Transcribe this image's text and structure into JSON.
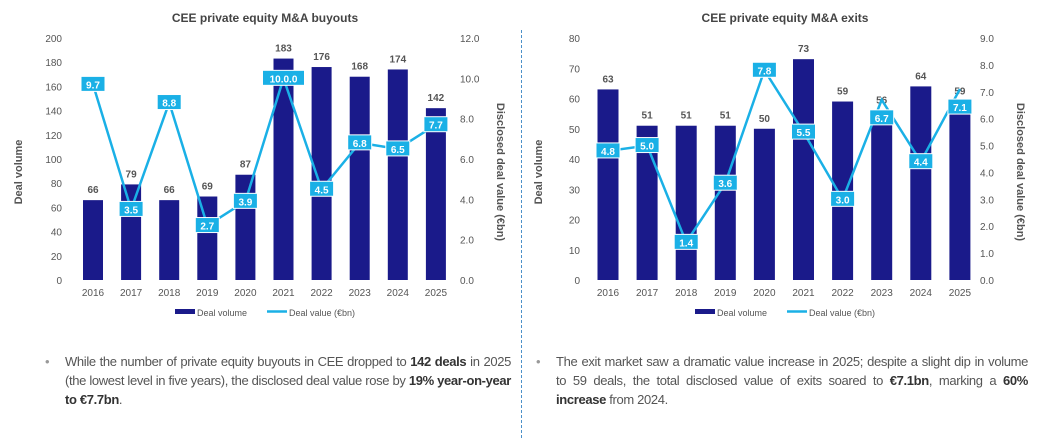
{
  "chart_data": [
    {
      "type": "bar+line",
      "title": "CEE private equity M&A buyouts",
      "categories": [
        "2016",
        "2017",
        "2018",
        "2019",
        "2020",
        "2021",
        "2022",
        "2023",
        "2024",
        "2025"
      ],
      "ylabel": "Deal volume",
      "y2label": "Disclosed deal value (€bn)",
      "ylim": [
        0,
        200
      ],
      "yticks": [
        "0",
        "20",
        "40",
        "60",
        "80",
        "100",
        "120",
        "140",
        "160",
        "180",
        "200"
      ],
      "y2lim": [
        0,
        12
      ],
      "y2ticks": [
        "0.0",
        "2.0",
        "4.0",
        "6.0",
        "8.0",
        "10.0",
        "12.0"
      ],
      "series": [
        {
          "name": "Deal volume",
          "type": "bar",
          "axis": "left",
          "values": [
            66,
            79,
            66,
            69,
            87,
            183,
            176,
            168,
            174,
            142
          ],
          "labels": [
            "66",
            "79",
            "66",
            "69",
            "87",
            "183",
            "176",
            "168",
            "174",
            "142"
          ]
        },
        {
          "name": "Deal value (€bn)",
          "type": "line",
          "axis": "right",
          "values": [
            9.7,
            3.5,
            8.8,
            2.7,
            3.9,
            10.0,
            4.5,
            6.8,
            6.5,
            7.7
          ],
          "labels": [
            "9.7",
            "3.5",
            "8.8",
            "2.7",
            "3.9",
            "10.0.0",
            "4.5",
            "6.8",
            "6.5",
            "7.7"
          ]
        }
      ],
      "legend": "bottom",
      "grid": false
    },
    {
      "type": "bar+line",
      "title": "CEE private equity M&A exits",
      "categories": [
        "2016",
        "2017",
        "2018",
        "2019",
        "2020",
        "2021",
        "2022",
        "2023",
        "2024",
        "2025"
      ],
      "ylabel": "Deal volume",
      "y2label": "Disclosed deal value (€bn)",
      "ylim": [
        0,
        80
      ],
      "yticks": [
        "0",
        "10",
        "20",
        "30",
        "40",
        "50",
        "60",
        "70",
        "80"
      ],
      "y2lim": [
        0,
        9
      ],
      "y2ticks": [
        "0.0",
        "1.0",
        "2.0",
        "3.0",
        "4.0",
        "5.0",
        "6.0",
        "7.0",
        "8.0",
        "9.0"
      ],
      "series": [
        {
          "name": "Deal volume",
          "type": "bar",
          "axis": "left",
          "values": [
            63,
            51,
            51,
            51,
            50,
            73,
            59,
            56,
            64,
            59
          ],
          "labels": [
            "63",
            "51",
            "51",
            "51",
            "50",
            "73",
            "59",
            "56",
            "64",
            "59"
          ]
        },
        {
          "name": "Deal value (€bn)",
          "type": "line",
          "axis": "right",
          "values": [
            4.8,
            5.0,
            1.4,
            3.6,
            7.8,
            5.5,
            3.0,
            6.7,
            4.4,
            7.1
          ],
          "labels": [
            "4.8",
            "5.0",
            "1.4",
            "3.6",
            "7.8",
            "5.5",
            "3.0",
            "6.7",
            "4.4",
            "7.1"
          ]
        }
      ],
      "legend": "bottom",
      "grid": false
    }
  ],
  "colors": {
    "bar": "#1a1a8a",
    "line": "#1ab0e6",
    "label_bg": "#1ab0e6",
    "text": "#555555"
  },
  "bullets": [
    [
      {
        "text": "While the number of private equity buyouts in CEE dropped to ",
        "bold": false
      },
      {
        "text": "142 deals",
        "bold": true
      },
      {
        "text": " in 2025 (the lowest level in five years), the disclosed deal value rose by ",
        "bold": false
      },
      {
        "text": "19% year-on-year to €7.7bn",
        "bold": true
      },
      {
        "text": ".",
        "bold": false
      }
    ],
    [
      {
        "text": "The exit market saw a dramatic value increase in 2025; despite a slight dip in volume to 59 deals, the total disclosed value of exits soared to ",
        "bold": false
      },
      {
        "text": "€7.1bn",
        "bold": true
      },
      {
        "text": ", marking a ",
        "bold": false
      },
      {
        "text": "60% increase",
        "bold": true
      },
      {
        "text": " from 2024.",
        "bold": false
      }
    ]
  ]
}
